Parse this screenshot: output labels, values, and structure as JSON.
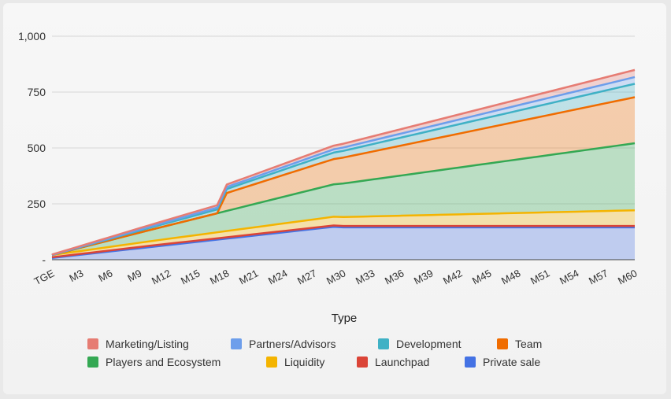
{
  "chart_data": {
    "type": "area",
    "stacked": true,
    "title": "",
    "xlabel": "Type",
    "ylabel": "",
    "ylim": [
      0,
      1000
    ],
    "yticks": [
      {
        "value": 0,
        "label": "-"
      },
      {
        "value": 250,
        "label": "250"
      },
      {
        "value": 500,
        "label": "500"
      },
      {
        "value": 750,
        "label": "750"
      },
      {
        "value": 1000,
        "label": "1,000"
      }
    ],
    "categories": [
      "TGE",
      "M1",
      "M2",
      "M3",
      "M4",
      "M5",
      "M6",
      "M7",
      "M8",
      "M9",
      "M10",
      "M11",
      "M12",
      "M13",
      "M14",
      "M15",
      "M16",
      "M17",
      "M18",
      "M19",
      "M20",
      "M21",
      "M22",
      "M23",
      "M24",
      "M25",
      "M26",
      "M27",
      "M28",
      "M29",
      "M30",
      "M31",
      "M32",
      "M33",
      "M34",
      "M35",
      "M36",
      "M37",
      "M38",
      "M39",
      "M40",
      "M41",
      "M42",
      "M43",
      "M44",
      "M45",
      "M46",
      "M47",
      "M48",
      "M49",
      "M50",
      "M51",
      "M52",
      "M53",
      "M54",
      "M55",
      "M56",
      "M57",
      "M58",
      "M59",
      "M60"
    ],
    "tick_labels": [
      "TGE",
      "M3",
      "M6",
      "M9",
      "M12",
      "M15",
      "M18",
      "M21",
      "M24",
      "M27",
      "M30",
      "M33",
      "M36",
      "M39",
      "M42",
      "M45",
      "M48",
      "M51",
      "M54",
      "M57",
      "M60"
    ],
    "legend_position": "bottom",
    "series": [
      {
        "name": "Private sale",
        "color": "#4472e4",
        "values": [
          8,
          12.8,
          17.6,
          22.4,
          27.2,
          32,
          36.8,
          41.6,
          46.4,
          51.2,
          56,
          60.8,
          65.6,
          70.4,
          75.2,
          80,
          84.8,
          89.6,
          94.4,
          99.2,
          104,
          108.8,
          113.6,
          118.4,
          123.2,
          128,
          132.8,
          137.6,
          142.4,
          147.2,
          145,
          145,
          145,
          145,
          145,
          145,
          145,
          145,
          145,
          145,
          145,
          145,
          145,
          145,
          145,
          145,
          145,
          145,
          145,
          145,
          145,
          145,
          145,
          145,
          145,
          145,
          145,
          145,
          145,
          145,
          145
        ]
      },
      {
        "name": "Launchpad",
        "color": "#db4437",
        "values": [
          3,
          3.3,
          3.6,
          3.9,
          4.2,
          4.5,
          4.8,
          5.1,
          5.4,
          5.7,
          6,
          6,
          6,
          6,
          6,
          6,
          6,
          6,
          6,
          6,
          6,
          6,
          6,
          6,
          6,
          6,
          6,
          6,
          6,
          6,
          6,
          6,
          6,
          6,
          6,
          6,
          6,
          6,
          6,
          6,
          6,
          6,
          6,
          6,
          6,
          6,
          6,
          6,
          6,
          6,
          6,
          6,
          6,
          6,
          6,
          6,
          6,
          6,
          6,
          6,
          6
        ]
      },
      {
        "name": "Liquidity",
        "color": "#f4b400",
        "values": [
          10,
          11,
          12,
          13,
          14,
          15,
          16,
          17,
          18,
          19,
          20,
          21,
          22,
          23,
          24,
          25,
          26,
          27,
          28,
          29,
          30,
          31,
          32,
          33,
          34,
          35,
          36,
          37,
          38,
          39,
          40,
          41,
          42,
          43,
          44,
          45,
          46,
          47,
          48,
          49,
          50,
          51,
          52,
          53,
          54,
          55,
          56,
          57,
          58,
          59,
          60,
          61,
          62,
          63,
          64,
          65,
          66,
          67,
          68,
          69,
          70
        ]
      },
      {
        "name": "Players and Ecosystem",
        "color": "#34a853",
        "values": [
          0,
          5,
          10,
          15,
          20,
          25,
          30,
          35,
          40,
          45,
          50,
          55,
          60,
          65,
          70,
          75,
          80,
          85,
          90,
          95,
          100,
          105,
          110,
          115,
          120,
          125,
          130,
          135,
          140,
          145,
          150,
          155,
          160,
          165,
          170,
          175,
          180,
          185,
          190,
          195,
          200,
          205,
          210,
          215,
          220,
          225,
          230,
          235,
          240,
          245,
          250,
          255,
          260,
          265,
          270,
          275,
          280,
          285,
          290,
          295,
          300
        ]
      },
      {
        "name": "Team",
        "color": "#f06c00",
        "values": [
          0,
          0,
          0,
          0,
          0,
          0,
          0,
          0,
          0,
          0,
          0,
          0,
          0,
          0,
          0,
          0,
          0,
          0,
          80,
          83,
          86,
          89,
          92,
          95,
          98,
          101,
          104,
          107,
          110,
          113,
          116,
          119,
          122,
          125,
          128,
          131,
          134,
          137,
          140,
          143,
          146,
          149,
          152,
          155,
          158,
          161,
          164,
          167,
          170,
          173,
          176,
          179,
          182,
          185,
          188,
          191,
          194,
          197,
          200,
          203,
          206
        ]
      },
      {
        "name": "Development",
        "color": "#3fb1c5",
        "values": [
          0,
          1,
          2,
          3,
          4,
          5,
          6,
          7,
          8,
          9,
          10,
          11,
          12,
          13,
          14,
          15,
          16,
          17,
          18,
          19,
          20,
          21,
          22,
          23,
          24,
          25,
          26,
          27,
          28,
          29,
          30,
          31,
          32,
          33,
          34,
          35,
          36,
          37,
          38,
          39,
          40,
          41,
          42,
          43,
          44,
          45,
          46,
          47,
          48,
          49,
          50,
          51,
          52,
          53,
          54,
          55,
          56,
          57,
          58,
          59,
          60
        ]
      },
      {
        "name": "Partners/Advisors",
        "color": "#6d9eeb",
        "values": [
          0,
          0.5,
          1,
          1.5,
          2,
          2.5,
          3,
          3.5,
          4,
          4.5,
          5,
          5.5,
          6,
          6.5,
          7,
          7.5,
          8,
          8.5,
          9,
          9.5,
          10,
          10.5,
          11,
          11.5,
          12,
          12.5,
          13,
          13.5,
          14,
          14.5,
          15,
          15.5,
          16,
          16.5,
          17,
          17.5,
          18,
          18.5,
          19,
          19.5,
          20,
          20.5,
          21,
          21.5,
          22,
          22.5,
          23,
          23.5,
          24,
          24.5,
          25,
          25.5,
          26,
          26.5,
          27,
          27.5,
          28,
          28.5,
          29,
          29.5,
          30
        ]
      },
      {
        "name": "Marketing/Listing",
        "color": "#e67c73",
        "values": [
          2,
          2.5,
          3,
          3.5,
          4,
          4.5,
          5,
          5.5,
          6,
          6.5,
          7,
          7.5,
          8,
          8.5,
          9,
          9.5,
          10,
          10.5,
          11,
          11.5,
          12,
          12.5,
          13,
          13.5,
          14,
          14.5,
          15,
          15.5,
          16,
          16.5,
          17,
          17.5,
          18,
          18.5,
          19,
          19.5,
          20,
          20.5,
          21,
          21.5,
          22,
          22.5,
          23,
          23.5,
          24,
          24.5,
          25,
          25.5,
          26,
          26.5,
          27,
          27.5,
          28,
          28.5,
          29,
          29.5,
          30,
          30.5,
          31,
          31.5,
          32
        ]
      }
    ],
    "legend_order": [
      "Marketing/Listing",
      "Partners/Advisors",
      "Development",
      "Team",
      "Players and Ecosystem",
      "Liquidity",
      "Launchpad",
      "Private sale"
    ]
  }
}
